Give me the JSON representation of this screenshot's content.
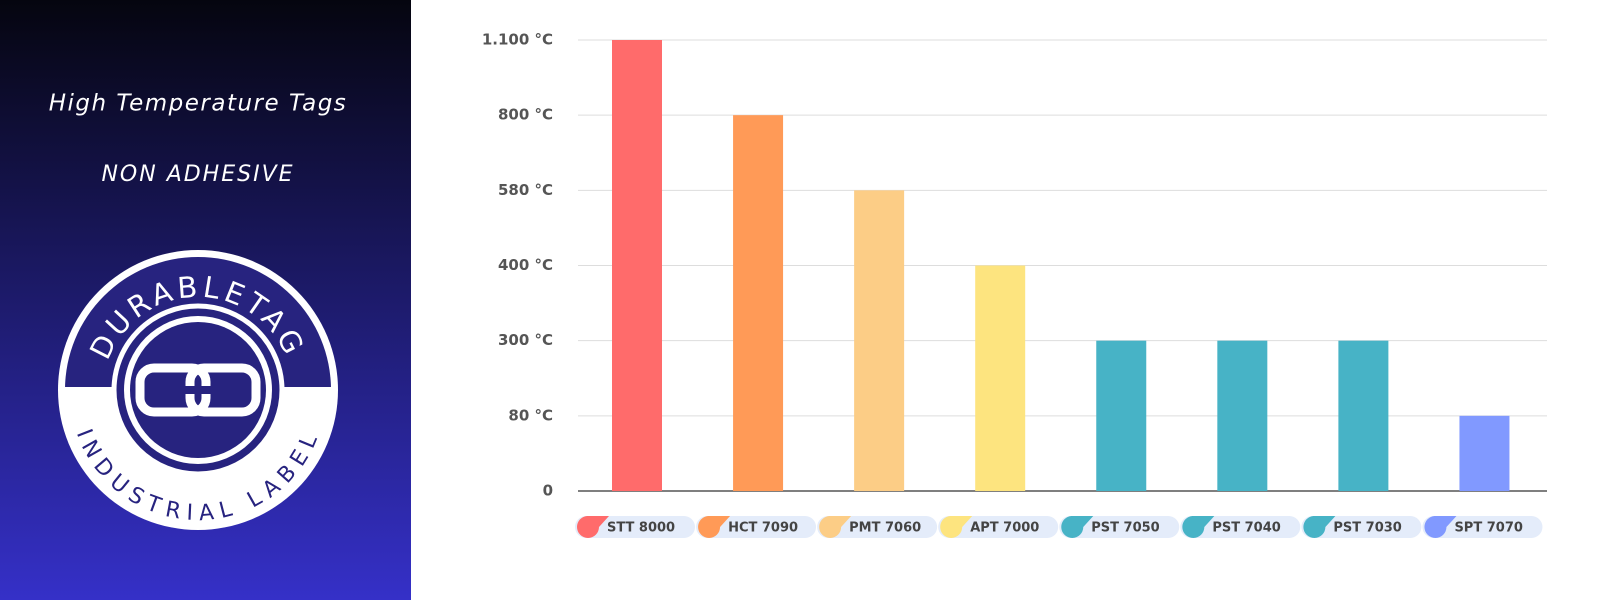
{
  "panel": {
    "title": "High Temperature Tags",
    "subtitle": "NON ADHESIVE",
    "logo_top": "DURABLETAG",
    "logo_bottom": "INDUSTRIAL LABEL"
  },
  "chart_data": {
    "type": "bar",
    "categories": [
      "STT 8000",
      "HCT 7090",
      "PMT 7060",
      "APT 7000",
      "PST 7050",
      "PST 7040",
      "PST 7030",
      "SPT 7070"
    ],
    "values": [
      1100,
      800,
      580,
      400,
      300,
      300,
      300,
      80
    ],
    "colors": [
      "#ff6b6b",
      "#ff9a57",
      "#fccd86",
      "#fde47f",
      "#47b3c6",
      "#47b3c6",
      "#47b3c6",
      "#8199ff"
    ],
    "ylim": [
      0,
      1100
    ],
    "yticks": [
      0,
      {
        "value": 80,
        "label": "80 °C"
      },
      {
        "value": 300,
        "label": "300 °C"
      },
      {
        "value": 400,
        "label": "400 °C"
      },
      {
        "value": 580,
        "label": "580 °C"
      },
      {
        "value": 800,
        "label": "800 °C"
      },
      {
        "value": 1100,
        "label": "1.100 °C"
      }
    ],
    "grid": true
  }
}
